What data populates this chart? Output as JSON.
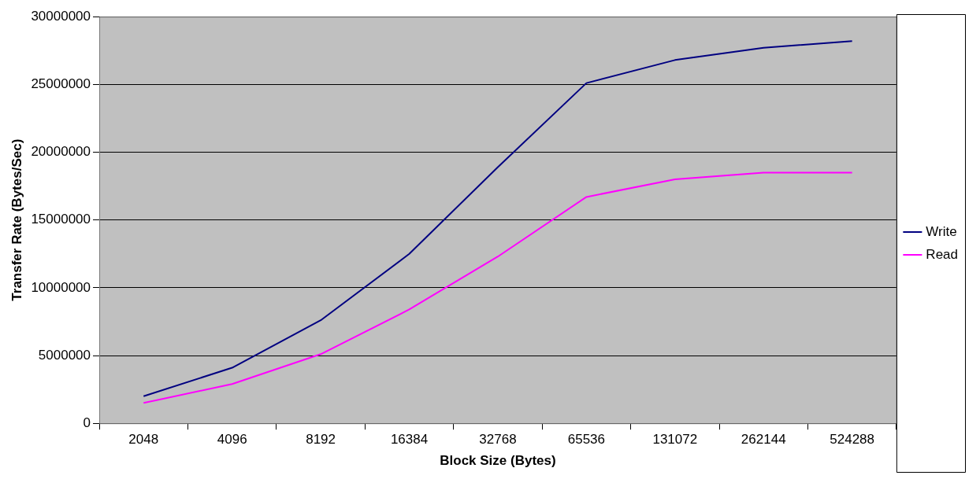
{
  "chart_data": {
    "type": "line",
    "xlabel": "Block Size (Bytes)",
    "ylabel": "Transfer Rate (Bytes/Sec)",
    "categories": [
      "2048",
      "4096",
      "8192",
      "16384",
      "32768",
      "65536",
      "131072",
      "262144",
      "524288"
    ],
    "series": [
      {
        "name": "Write",
        "color": "#000080",
        "values": [
          2000000,
          4100000,
          7600000,
          12500000,
          18900000,
          25100000,
          26800000,
          27700000,
          28200000
        ]
      },
      {
        "name": "Read",
        "color": "#ff00ff",
        "values": [
          1500000,
          2900000,
          5100000,
          8400000,
          12300000,
          16700000,
          18000000,
          18500000,
          18500000
        ]
      }
    ],
    "ylim": [
      0,
      30000000
    ],
    "yticks": [
      0,
      5000000,
      10000000,
      15000000,
      20000000,
      25000000,
      30000000
    ],
    "grid": "y",
    "legend": "right",
    "marker": "none",
    "line_style": "solid"
  }
}
